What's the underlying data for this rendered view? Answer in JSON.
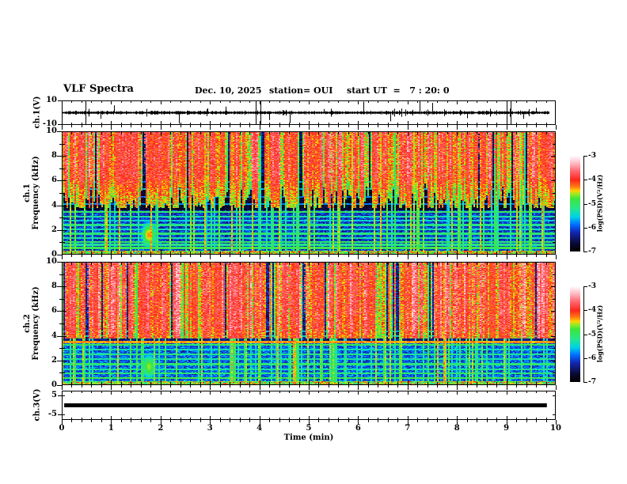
{
  "header": {
    "title": "VLF Spectra",
    "date": "Dec. 10, 2025",
    "station": "station= OUI",
    "start_ut": "start UT  =   7 : 20: 0"
  },
  "x_axis": {
    "label": "Time (min)",
    "tick_labels": [
      "0",
      "1",
      "2",
      "3",
      "4",
      "5",
      "6",
      "7",
      "8",
      "9",
      "10"
    ]
  },
  "panels": {
    "ch1_wave": {
      "ylabel": "ch.1(V)",
      "y_tick_labels": [
        "10",
        "-10"
      ]
    },
    "spec1": {
      "ylabel_line1": "ch.1",
      "ylabel_line2": "Frequency (kHz)",
      "y_tick_labels": [
        "10",
        "8",
        "6",
        "4",
        "2",
        "0"
      ]
    },
    "spec2": {
      "ylabel_line1": "ch.2",
      "ylabel_line2": "Frequency (kHz)",
      "y_tick_labels": [
        "10",
        "8",
        "6",
        "4",
        "2",
        "0"
      ]
    },
    "ch3_wave": {
      "ylabel": "ch.3(V)",
      "y_tick_labels": [
        "5",
        "-5"
      ]
    }
  },
  "colorbars": [
    {
      "label": "log(PSD)(V²/Hz)",
      "tick_labels": [
        "-3",
        "-4",
        "-5",
        "-6",
        "-7"
      ]
    },
    {
      "label": "log(PSD)(V²/Hz)",
      "tick_labels": [
        "-3",
        "-4",
        "-5",
        "-6",
        "-7"
      ]
    }
  ],
  "chart_data": {
    "type": "heatmap",
    "title": "VLF Spectra",
    "date": "Dec. 10, 2025",
    "station": "OUI",
    "start_ut": "7:20:0",
    "x": {
      "label": "Time (min)",
      "range": [
        0,
        10
      ],
      "major_tick": 1,
      "minor_tick": 0.2
    },
    "colormap": {
      "range": [
        -7,
        -3
      ],
      "stops": [
        [
          0.0,
          [
            0,
            0,
            0
          ]
        ],
        [
          0.08,
          [
            10,
            10,
            50
          ]
        ],
        [
          0.2,
          [
            20,
            40,
            180
          ]
        ],
        [
          0.28,
          [
            0,
            110,
            255
          ]
        ],
        [
          0.36,
          [
            0,
            210,
            230
          ]
        ],
        [
          0.45,
          [
            40,
            230,
            140
          ]
        ],
        [
          0.55,
          [
            60,
            230,
            60
          ]
        ],
        [
          0.6,
          [
            150,
            235,
            40
          ]
        ],
        [
          0.635,
          [
            255,
            210,
            0
          ]
        ],
        [
          0.68,
          [
            255,
            120,
            20
          ]
        ],
        [
          0.75,
          [
            250,
            40,
            30
          ]
        ],
        [
          0.85,
          [
            255,
            110,
            120
          ]
        ],
        [
          0.93,
          [
            255,
            190,
            200
          ]
        ],
        [
          1.0,
          [
            255,
            250,
            250
          ]
        ]
      ]
    },
    "panels": [
      {
        "id": "ch1_waveform",
        "type": "line",
        "ylabel": "ch.1(V)",
        "ylim": [
          -10,
          10
        ],
        "baseline_V": 0,
        "noise_V": 0.8,
        "signal_end_min": 9.87,
        "description": "Noisy voltage trace around 0 V with impulsive spikes",
        "spikes": [
          {
            "t": 0.48,
            "v": 10,
            "full": true
          },
          {
            "t": 0.78,
            "v": -5
          },
          {
            "t": 1.05,
            "v": 6
          },
          {
            "t": 2.37,
            "v": -9
          },
          {
            "t": 2.95,
            "v": 3.5
          },
          {
            "t": 3.32,
            "v": 5
          },
          {
            "t": 3.92,
            "v": 10,
            "full": true
          },
          {
            "t": 4.02,
            "v": -10,
            "full": true
          },
          {
            "t": 4.2,
            "v": -6
          },
          {
            "t": 4.62,
            "v": -8.5
          },
          {
            "t": 5.3,
            "v": 3
          },
          {
            "t": 6.1,
            "v": 9
          },
          {
            "t": 6.65,
            "v": -7
          },
          {
            "t": 7.24,
            "v": 9.5
          },
          {
            "t": 7.5,
            "v": 8
          },
          {
            "t": 8.2,
            "v": -4.5
          },
          {
            "t": 9.0,
            "v": 10,
            "full": true
          },
          {
            "t": 9.08,
            "v": -10,
            "full": true
          },
          {
            "t": 9.35,
            "v": -5
          },
          {
            "t": 9.6,
            "v": 4
          }
        ]
      },
      {
        "id": "ch1_spectrogram",
        "type": "heatmap",
        "ylabel": "ch.1 Frequency (kHz)",
        "ylim": [
          0,
          10
        ],
        "value_label": "log(PSD)(V²/Hz)",
        "value_range": [
          -7,
          -3
        ],
        "description": "Broadband green impulsive streaks above ~6.4 kHz, dark band 3.6-6.4 kHz, blue band with cyan horizontal lines below 3.6 kHz, bright speckled band near 0 kHz, vertical sferic lines throughout, green blob near t=1.75 min at 1-2.5 kHz",
        "gen": {
          "seed": 101,
          "bands": [
            [
              0,
              0.35,
              -4.6,
              1.0
            ],
            [
              0.35,
              3.6,
              -6.1,
              0.5
            ],
            [
              3.6,
              6.4,
              -6.7,
              0.35
            ],
            [
              6.4,
              10,
              -6.5,
              0.5
            ]
          ],
          "h_lines": [
            [
              0.55,
              -4.9
            ],
            [
              0.8,
              -5.2
            ],
            [
              1.05,
              -5.0
            ],
            [
              1.35,
              -5.3
            ],
            [
              1.7,
              -5.1
            ],
            [
              2.05,
              -5.4
            ],
            [
              2.4,
              -5.2
            ],
            [
              2.75,
              -5.5
            ],
            [
              3.1,
              -5.3
            ],
            [
              3.45,
              -5.0
            ],
            [
              4.1,
              -5.8
            ],
            [
              4.7,
              -5.9
            ],
            [
              5.3,
              -5.7
            ],
            [
              5.9,
              -5.9
            ]
          ],
          "streak_prob": 0.25,
          "act_thresh": 0.28,
          "top_fmin": 6.4,
          "top_v": -5.0,
          "depth_gain": 2.2,
          "red_prob": 0.04,
          "blob": {
            "t": 1.75,
            "f": 1.6,
            "st": 0.12,
            "sf": 0.8,
            "peak": -4.3
          }
        }
      },
      {
        "id": "ch2_spectrogram",
        "type": "heatmap",
        "ylabel": "ch.2 Frequency (kHz)",
        "ylim": [
          0,
          10
        ],
        "value_label": "log(PSD)(V²/Hz)",
        "value_range": [
          -7,
          -3
        ],
        "description": "Dense green/yellow/red impulsive streaks above ~4.7 kHz, strong continuous bright green line at ~3.5 kHz, blue band with cyan horizontal lines below, bright speckled band near 0 kHz, vertical sferic lines throughout",
        "gen": {
          "seed": 202,
          "bands": [
            [
              0,
              0.3,
              -4.7,
              1.0
            ],
            [
              0.3,
              3.42,
              -5.95,
              0.5
            ],
            [
              3.42,
              3.62,
              -4.35,
              0.25
            ],
            [
              3.62,
              4.6,
              -6.4,
              0.4
            ],
            [
              4.6,
              10,
              -6.3,
              0.5
            ]
          ],
          "h_lines": [
            [
              0.6,
              -4.9
            ],
            [
              0.95,
              -5.1
            ],
            [
              1.3,
              -5.3
            ],
            [
              1.7,
              -5.1
            ],
            [
              2.1,
              -5.3
            ],
            [
              2.5,
              -5.2
            ],
            [
              2.9,
              -5.4
            ],
            [
              3.25,
              -5.0
            ],
            [
              4.0,
              -5.6
            ],
            [
              4.35,
              -5.7
            ]
          ],
          "streak_prob": 0.3,
          "act_thresh": 0.25,
          "top_fmin": 4.7,
          "top_v": -4.9,
          "depth_gain": 2.0,
          "red_prob": 0.15,
          "blob": {
            "t": 1.75,
            "f": 1.5,
            "st": 0.12,
            "sf": 0.8,
            "peak": -4.6
          }
        }
      },
      {
        "id": "ch3_waveform",
        "type": "line",
        "ylabel": "ch.3(V)",
        "ylim": [
          -5,
          5
        ],
        "value_V": 0,
        "extent_min": [
          0.05,
          9.82
        ],
        "line_thickness_V": 1.5,
        "description": "Flat thick line at 0 V for the whole record"
      }
    ]
  }
}
